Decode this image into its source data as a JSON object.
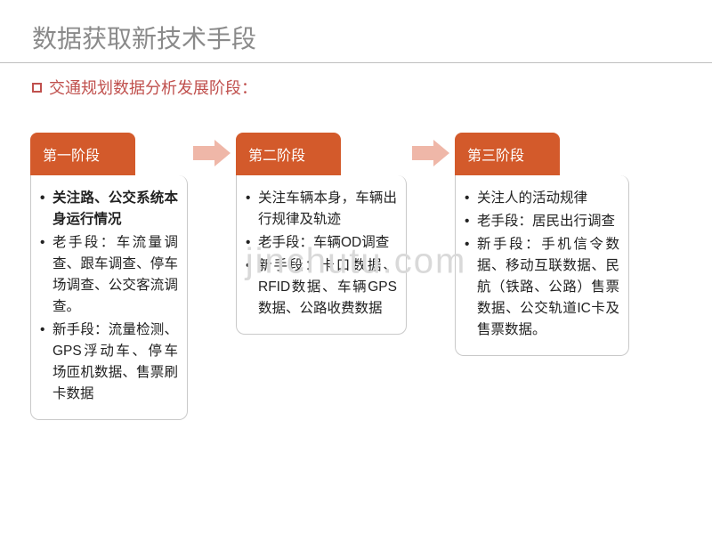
{
  "colors": {
    "title_text": "#8a8a8a",
    "title_underline": "#bfbfbf",
    "accent": "#c0504d",
    "stage_header_bg": "#d35a2b",
    "stage_border": "#c9c9c9",
    "arrow_fill": "#efb7a8",
    "body_text": "#222222",
    "watermark": "#d9d9d9"
  },
  "layout": {
    "title_fontsize": 28,
    "subtitle_fontsize": 18,
    "stage_widths": [
      177,
      192,
      196
    ],
    "header_widths": [
      118,
      118,
      118
    ],
    "arrow_w": 46,
    "arrow_h": 34,
    "body_fontsize": 15.5
  },
  "title": "数据获取新技术手段",
  "subtitle": "交通规划数据分析发展阶段：",
  "watermark": "jinchutu.com",
  "stages": [
    {
      "header": "第一阶段",
      "items": [
        "关注路、公交系统本身运行情况",
        "老手段：车流量调查、跟车调查、停车场调查、公交客流调查。",
        "新手段：流量检测、GPS浮动车、停车场匝机数据、售票刷卡数据"
      ]
    },
    {
      "header": "第二阶段",
      "items": [
        "关注车辆本身，车辆出行规律及轨迹",
        "老手段：车辆OD调查",
        "新手段：卡口数据、RFID数据、车辆GPS数据、公路收费数据"
      ]
    },
    {
      "header": "第三阶段",
      "items": [
        "关注人的活动规律",
        "老手段：居民出行调查",
        "新手段：手机信令数据、移动互联数据、民航（铁路、公路）售票数据、公交轨道IC卡及售票数据。"
      ]
    }
  ]
}
